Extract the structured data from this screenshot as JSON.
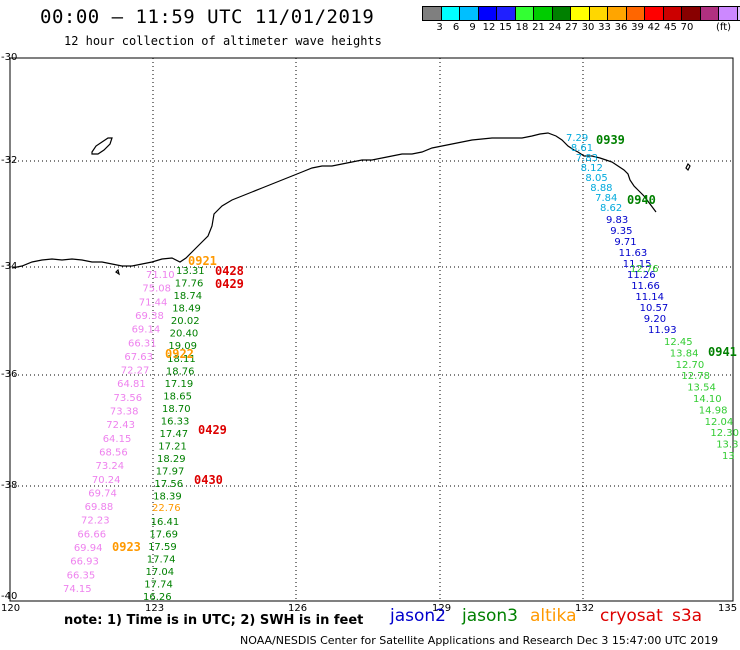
{
  "header": {
    "title": "00:00 – 11:59 UTC 11/01/2019",
    "subtitle": "12 hour collection of altimeter wave heights"
  },
  "colorbar": {
    "colors": [
      "#7f7f7f",
      "#00ffff",
      "#00bfff",
      "#0000ff",
      "#2020ff",
      "#33ff33",
      "#00cc00",
      "#008000",
      "#ffff00",
      "#ffd700",
      "#ffa500",
      "#ff6600",
      "#ff0000",
      "#cc0000",
      "#880000",
      "#b03080",
      "#cc88ff",
      "#e0c0ff",
      "#000000"
    ],
    "labels": [
      "3",
      "6",
      "9",
      "12",
      "15",
      "18",
      "21",
      "24",
      "27",
      "30",
      "33",
      "36",
      "39",
      "42",
      "45",
      "70"
    ],
    "unit": "(ft)"
  },
  "axes": {
    "lat_labels": [
      "-30",
      "-32",
      "-34",
      "-36",
      "-38",
      "-40"
    ],
    "lon_labels": [
      "120",
      "123",
      "126",
      "129",
      "132",
      "135"
    ]
  },
  "tracks": {
    "pink": {
      "color": "#ee82ee",
      "values": [
        "71.10",
        "75.08",
        "71.44",
        "69.38",
        "69.14",
        "66.31",
        "67.63",
        "72.27",
        "64.81",
        "73.56",
        "73.38",
        "72.43",
        "64.15",
        "68.56",
        "73.24",
        "70.24",
        "69.74",
        "69.88",
        "72.23",
        "66.66",
        "69.94",
        "66.93",
        "66.35",
        "74.15"
      ]
    },
    "green": {
      "color": "#008000",
      "values": [
        "13.31",
        "17.76",
        "18.74",
        "18.49",
        "20.02",
        "20.40",
        "19.09",
        "18.11",
        "18.76",
        "17.19",
        "18.65",
        "18.70",
        "16.33",
        "17.47",
        "17.21",
        "18.29",
        "17.97",
        "17.56",
        "18.39",
        "",
        "16.41",
        "17.69",
        "17.59",
        "17.74",
        "17.04",
        "17.74",
        "16.26"
      ]
    },
    "orange_mid": [
      "22.76"
    ],
    "cyan": {
      "color": "#00aadd",
      "values": [
        "7.29",
        "8.61",
        "7.83",
        "8.12",
        "8.05",
        "8.88",
        "7.84",
        "8.62"
      ]
    },
    "blue": {
      "color": "#0000cc",
      "values": [
        "9.83",
        "9.35",
        "9.71",
        "11.63",
        "11.15",
        "11.26",
        "11.66",
        "11.14",
        "10.57",
        "9.20",
        "11.93"
      ]
    },
    "lightgreen_top": [
      "12.76"
    ],
    "lightgreen": {
      "color": "#33cc33",
      "values": [
        "12.45",
        "13.84",
        "12.70",
        "12.78",
        "13.54",
        "14.10",
        "14.98",
        "12.04",
        "12.30",
        "13.3",
        "13"
      ]
    }
  },
  "time_labels": [
    {
      "text": "0921",
      "color": "#ff9900"
    },
    {
      "text": "0428",
      "color": "#dd0000"
    },
    {
      "text": "0429",
      "color": "#dd0000"
    },
    {
      "text": "0922",
      "color": "#ff9900"
    },
    {
      "text": "0429",
      "color": "#dd0000"
    },
    {
      "text": "0430",
      "color": "#dd0000"
    },
    {
      "text": "0923",
      "color": "#ff9900"
    },
    {
      "text": "0939",
      "color": "#008000"
    },
    {
      "text": "0940",
      "color": "#008000"
    },
    {
      "text": "0941",
      "color": "#008000"
    }
  ],
  "note": "note: 1) Time is in UTC; 2) SWH is in feet",
  "legend": [
    {
      "label": "jason2",
      "color": "#0000cc"
    },
    {
      "label": "jason3",
      "color": "#008000"
    },
    {
      "label": "altika",
      "color": "#ff9900"
    },
    {
      "label": "cryosat",
      "color": "#dd0000"
    },
    {
      "label": "s3a",
      "color": "#dd0000"
    }
  ],
  "footer": "NOAA/NESDIS Center for Satellite Applications and Research   Dec  3 15:47:00 UTC 2019"
}
